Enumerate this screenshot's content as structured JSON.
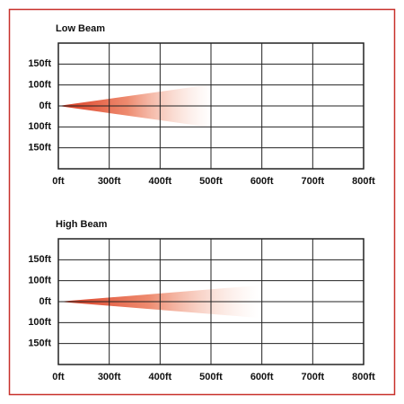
{
  "charts": [
    {
      "title": "Low Beam",
      "y_labels": [
        "150ft",
        "100ft",
        "0ft",
        "100ft",
        "150ft"
      ],
      "x_labels": [
        "0ft",
        "300ft",
        "400ft",
        "500ft",
        "600ft",
        "700ft",
        "800ft"
      ]
    },
    {
      "title": "High Beam",
      "y_labels": [
        "150ft",
        "100ft",
        "0ft",
        "100ft",
        "150ft"
      ],
      "x_labels": [
        "0ft",
        "300ft",
        "400ft",
        "500ft",
        "600ft",
        "700ft",
        "800ft"
      ]
    }
  ]
}
